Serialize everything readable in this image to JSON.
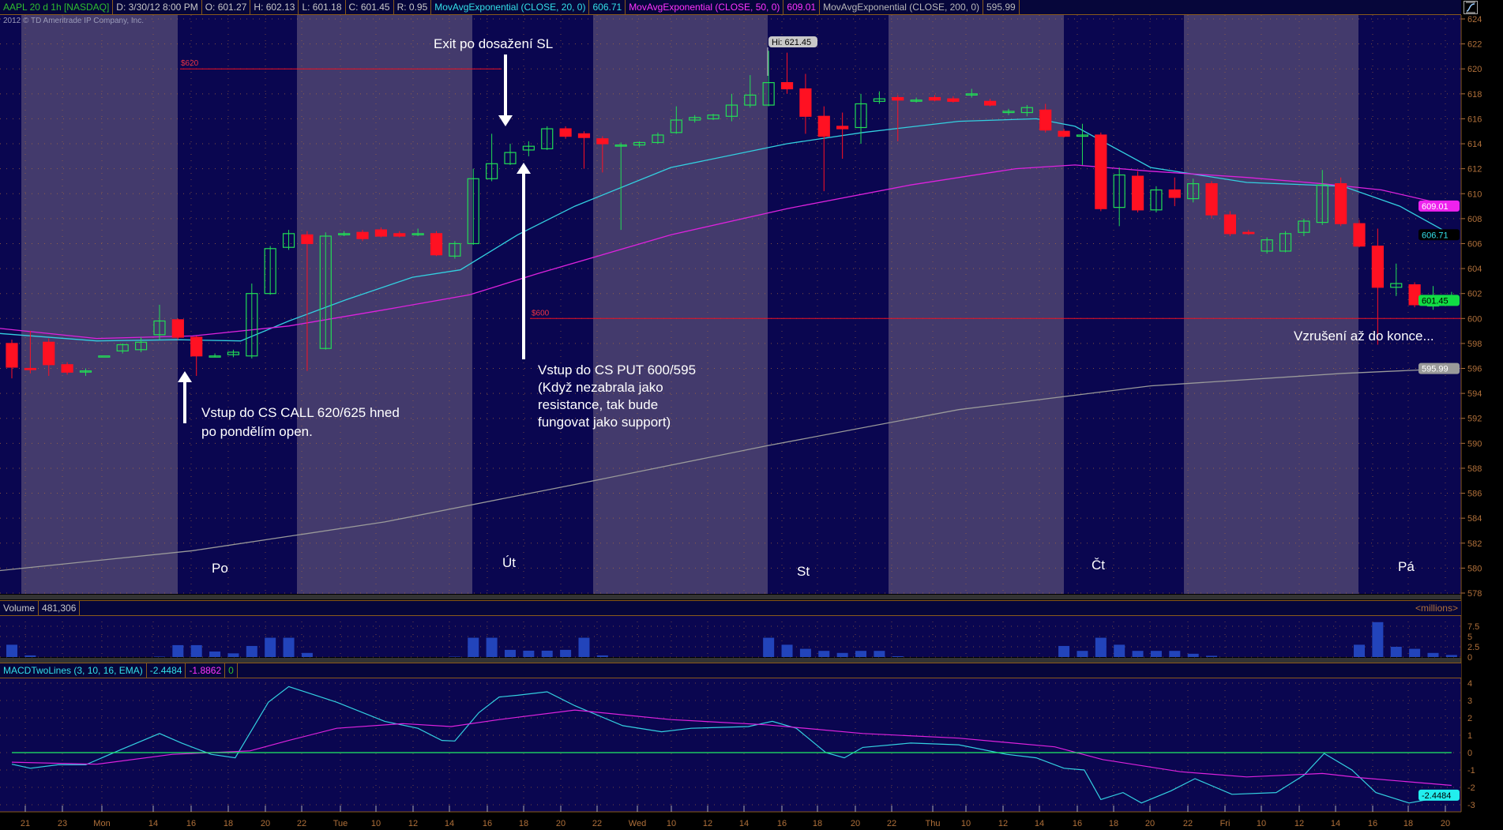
{
  "header": {
    "symbol": "AAPL 20 d 1h [NASDAQ]",
    "date": "D: 3/30/12 8:00 PM",
    "open": "O: 601.27",
    "high": "H: 602.13",
    "low": "L: 601.18",
    "close": "C: 601.45",
    "range": "R: 0.95",
    "ema20_label": "MovAvgExponential (CLOSE, 20, 0)",
    "ema20_value": "606.71",
    "ema50_label": "MovAvgExponential (CLOSE, 50, 0)",
    "ema50_value": "609.01",
    "ema200_label": "MovAvgExponential (CLOSE, 200, 0)",
    "ema200_value": "595.99",
    "copyright": "2012 © TD Ameritrade IP Company, Inc.",
    "style_icon": "chart-style-icon"
  },
  "volume_panel": {
    "label": "Volume",
    "value": "481,306",
    "unit": "<millions>"
  },
  "macd_panel": {
    "label": "MACDTwoLines (3, 10, 16, EMA)",
    "value": "-2.4484",
    "avg": "-1.8862",
    "diff": "0"
  },
  "annotations": {
    "exit": "Exit  po dosažení SL",
    "call_entry": [
      "Vstup do CS CALL 620/625 hned",
      "po pondělím open."
    ],
    "put_entry": [
      "Vstup do CS PUT 600/595",
      "(Když nezabrala jako",
      "resistance, tak bude",
      "fungovat jako support)"
    ],
    "excitement": "Vzrušení až do konce...",
    "days": [
      "Po",
      "Út",
      "St",
      "Čt",
      "Pá"
    ],
    "level_620": "$620",
    "level_600": "$600",
    "hi_label": "Hi: 621.45"
  },
  "colors": {
    "up": "#22dd55",
    "down": "#ff1122",
    "ema20": "#33d0e0",
    "ema50": "#dd22dd",
    "ema200": "#9a9a9a",
    "volume": "#2244bb",
    "session_light": "#433a6c",
    "session_dark": "#0a0650",
    "axis": "#b0703a"
  },
  "chart_data": [
    {
      "type": "candlestick",
      "title": "AAPL 20 d 1h [NASDAQ]",
      "ylim": [
        578,
        624
      ],
      "yticks": [
        578,
        580,
        582,
        584,
        586,
        588,
        590,
        592,
        594,
        596,
        598,
        600,
        602,
        604,
        606,
        608,
        610,
        612,
        614,
        616,
        618,
        620,
        622,
        624
      ],
      "xticks": [
        "21",
        "23",
        "Mon",
        "14",
        "16",
        "18",
        "20",
        "22",
        "Tue",
        "10",
        "12",
        "14",
        "16",
        "18",
        "20",
        "22",
        "Wed",
        "10",
        "12",
        "14",
        "16",
        "18",
        "20",
        "22",
        "Thu",
        "10",
        "12",
        "14",
        "16",
        "18",
        "20",
        "22",
        "Fri",
        "10",
        "12",
        "14",
        "16",
        "18",
        "20"
      ],
      "candles_ohlc": [
        [
          598.0,
          598.3,
          595.2,
          596.1
        ],
        [
          596.0,
          599.0,
          595.6,
          595.9
        ],
        [
          598.1,
          598.4,
          595.4,
          596.3
        ],
        [
          596.3,
          596.5,
          595.5,
          595.7
        ],
        [
          595.8,
          596.0,
          595.4,
          595.8
        ],
        [
          597.0,
          597.0,
          597.0,
          597.0
        ],
        [
          597.4,
          598.0,
          597.2,
          597.9
        ],
        [
          597.5,
          598.5,
          597.3,
          598.1
        ],
        [
          598.7,
          601.1,
          598.3,
          599.8
        ],
        [
          599.9,
          600.0,
          598.3,
          598.5
        ],
        [
          598.5,
          598.6,
          595.4,
          597.0
        ],
        [
          597.0,
          597.2,
          596.9,
          597.0
        ],
        [
          597.1,
          597.5,
          596.9,
          597.3
        ],
        [
          597.0,
          602.8,
          596.8,
          602.0
        ],
        [
          602.0,
          605.8,
          601.9,
          605.6
        ],
        [
          605.7,
          607.1,
          605.5,
          606.8
        ],
        [
          606.7,
          607.0,
          595.8,
          606.0
        ],
        [
          597.6,
          606.9,
          597.5,
          606.6
        ],
        [
          606.8,
          607.0,
          606.6,
          606.8
        ],
        [
          606.9,
          607.1,
          606.2,
          606.4
        ],
        [
          607.1,
          607.3,
          606.5,
          606.6
        ],
        [
          606.8,
          607.0,
          606.5,
          606.6
        ],
        [
          606.8,
          607.2,
          606.6,
          606.8
        ],
        [
          606.8,
          607.0,
          605.0,
          605.1
        ],
        [
          605.0,
          606.2,
          604.8,
          606.0
        ],
        [
          606.0,
          612.0,
          605.9,
          611.2
        ],
        [
          611.2,
          614.8,
          611.0,
          612.4
        ],
        [
          612.4,
          614.0,
          612.3,
          613.3
        ],
        [
          613.5,
          614.2,
          613.0,
          613.8
        ],
        [
          613.6,
          615.4,
          613.5,
          615.2
        ],
        [
          615.2,
          615.4,
          614.4,
          614.6
        ],
        [
          614.8,
          615.0,
          612.0,
          614.5
        ],
        [
          614.4,
          614.6,
          611.7,
          614.0
        ],
        [
          613.9,
          614.1,
          607.1,
          613.9
        ],
        [
          613.9,
          614.2,
          613.7,
          614.1
        ],
        [
          614.1,
          614.9,
          614.0,
          614.7
        ],
        [
          614.9,
          617.0,
          614.8,
          615.9
        ],
        [
          615.9,
          616.3,
          615.7,
          616.1
        ],
        [
          616.0,
          616.4,
          615.9,
          616.3
        ],
        [
          616.2,
          618.0,
          615.8,
          617.1
        ],
        [
          617.1,
          619.5,
          616.9,
          617.9
        ],
        [
          617.1,
          621.45,
          617.0,
          618.9
        ],
        [
          618.9,
          621.3,
          618.0,
          618.4
        ],
        [
          618.4,
          619.6,
          614.8,
          616.2
        ],
        [
          616.2,
          617.0,
          610.2,
          614.6
        ],
        [
          615.4,
          616.5,
          612.8,
          615.2
        ],
        [
          615.3,
          618.0,
          614.0,
          617.2
        ],
        [
          617.4,
          618.2,
          617.2,
          617.6
        ],
        [
          617.7,
          617.9,
          614.2,
          617.5
        ],
        [
          617.5,
          617.7,
          617.3,
          617.5
        ],
        [
          617.7,
          617.9,
          617.4,
          617.5
        ],
        [
          617.6,
          617.8,
          617.3,
          617.4
        ],
        [
          617.9,
          618.4,
          617.7,
          618.0
        ],
        [
          617.4,
          617.6,
          617.0,
          617.1
        ],
        [
          616.5,
          616.8,
          616.3,
          616.6
        ],
        [
          616.5,
          617.1,
          616.2,
          616.9
        ],
        [
          616.7,
          617.2,
          614.9,
          615.1
        ],
        [
          615.0,
          615.2,
          614.5,
          614.6
        ],
        [
          614.6,
          615.6,
          612.3,
          614.7
        ],
        [
          614.7,
          614.9,
          608.6,
          608.8
        ],
        [
          608.9,
          612.1,
          607.4,
          611.5
        ],
        [
          611.4,
          611.8,
          608.5,
          608.7
        ],
        [
          608.7,
          610.6,
          608.5,
          610.3
        ],
        [
          610.3,
          611.3,
          609.0,
          609.7
        ],
        [
          609.6,
          611.2,
          609.3,
          610.8
        ],
        [
          610.8,
          611.0,
          608.0,
          608.3
        ],
        [
          608.3,
          608.6,
          606.6,
          606.8
        ],
        [
          606.9,
          607.1,
          606.7,
          606.8
        ],
        [
          605.4,
          606.5,
          605.2,
          606.3
        ],
        [
          605.4,
          607.0,
          605.3,
          606.8
        ],
        [
          606.9,
          608.0,
          606.6,
          607.8
        ],
        [
          607.7,
          611.9,
          607.5,
          610.7
        ],
        [
          610.8,
          611.3,
          607.4,
          607.6
        ],
        [
          607.6,
          607.9,
          605.7,
          605.8
        ],
        [
          605.8,
          607.2,
          597.9,
          602.5
        ],
        [
          602.5,
          604.4,
          601.8,
          602.8
        ],
        [
          602.7,
          602.9,
          600.9,
          601.1
        ],
        [
          601.0,
          602.6,
          600.7,
          601.2
        ],
        [
          601.27,
          602.13,
          601.18,
          601.45
        ]
      ],
      "series": [
        {
          "name": "MovAvgExponential (CLOSE, 20, 0)",
          "points": [
            [
              0,
              598.8
            ],
            [
              4.6,
              598.2
            ],
            [
              9,
              598.3
            ],
            [
              12.4,
              598.2
            ],
            [
              15,
              599.8
            ],
            [
              18.1,
              601.5
            ],
            [
              21.7,
              603.3
            ],
            [
              24.3,
              603.9
            ],
            [
              27.4,
              606.7
            ],
            [
              30.5,
              609
            ],
            [
              35.7,
              612.1
            ],
            [
              42,
              614
            ],
            [
              46.1,
              614.9
            ],
            [
              51.3,
              615.8
            ],
            [
              55.5,
              616
            ],
            [
              57.6,
              615.4
            ],
            [
              61.7,
              612.1
            ],
            [
              66.9,
              610.9
            ],
            [
              72.1,
              610.6
            ],
            [
              75.2,
              609
            ],
            [
              78,
              606.71
            ]
          ]
        },
        {
          "name": "MovAvgExponential (CLOSE, 50, 0)",
          "points": [
            [
              0,
              599.2
            ],
            [
              4.6,
              598.4
            ],
            [
              9.8,
              598.6
            ],
            [
              15,
              599.4
            ],
            [
              20.2,
              600.7
            ],
            [
              24.8,
              601.9
            ],
            [
              28.5,
              603.6
            ],
            [
              35.7,
              606.7
            ],
            [
              42,
              608.8
            ],
            [
              48.7,
              610.7
            ],
            [
              54.4,
              612
            ],
            [
              57.6,
              612.3
            ],
            [
              61.7,
              611.8
            ],
            [
              66.9,
              611.3
            ],
            [
              71,
              610.8
            ],
            [
              74.2,
              610.3
            ],
            [
              78,
              609.01
            ]
          ]
        },
        {
          "name": "MovAvgExponential (CLOSE, 200, 0)",
          "points": [
            [
              0,
              579.8
            ],
            [
              9.8,
              581.4
            ],
            [
              20.2,
              583.7
            ],
            [
              30.5,
              586.7
            ],
            [
              40.9,
              589.8
            ],
            [
              51.3,
              592.7
            ],
            [
              61.7,
              594.6
            ],
            [
              72.1,
              595.6
            ],
            [
              78,
              595.99
            ]
          ]
        }
      ],
      "levels": [
        {
          "label": "$620",
          "value": 620
        },
        {
          "label": "$600",
          "value": 600
        }
      ]
    },
    {
      "type": "bar",
      "title": "Volume",
      "ylabel": "<millions>",
      "ylim": [
        0,
        8.5
      ],
      "yticks": [
        "0",
        "2.5",
        "5",
        "7.5"
      ],
      "values": [
        3.0,
        0.4,
        0,
        0,
        0,
        0,
        0,
        0,
        0.1,
        2.9,
        2.9,
        1.35,
        0.9,
        2.7,
        4.7,
        4.7,
        1.0,
        0,
        0,
        0,
        0,
        0,
        0,
        0,
        0.1,
        4.7,
        4.7,
        1.75,
        1.55,
        1.55,
        1.75,
        4.7,
        0.4,
        0,
        0,
        0,
        0,
        0,
        0,
        0,
        0,
        4.7,
        3.0,
        2.0,
        1.5,
        1.0,
        1.5,
        1.5,
        0.2,
        0,
        0,
        0,
        0,
        0,
        0,
        0,
        0,
        2.7,
        1.5,
        4.7,
        3.0,
        1.5,
        1.5,
        1.5,
        0.8,
        0.3,
        0,
        0,
        0,
        0,
        0,
        0,
        0,
        3.0,
        8.5,
        2.5,
        2.0,
        1.0,
        0.5
      ]
    },
    {
      "type": "line",
      "title": "MACDTwoLines (3, 10, 16, EMA)",
      "ylim": [
        -3.4,
        4.5
      ],
      "yticks": [
        "-3",
        "-2",
        "-1",
        "0",
        "1",
        "2",
        "3",
        "4"
      ],
      "series": [
        {
          "name": "Value",
          "points": [
            [
              0,
              -0.67
            ],
            [
              1,
              -0.9
            ],
            [
              2.5,
              -0.7
            ],
            [
              4,
              -0.7
            ],
            [
              5.9,
              0.17
            ],
            [
              8,
              1.1
            ],
            [
              9.2,
              0.55
            ],
            [
              10.8,
              -0.1
            ],
            [
              12.1,
              -0.3
            ],
            [
              13.9,
              2.9
            ],
            [
              15,
              3.8
            ],
            [
              17.6,
              2.9
            ],
            [
              20.2,
              1.8
            ],
            [
              22,
              1.4
            ],
            [
              23.3,
              0.7
            ],
            [
              24,
              0.67
            ],
            [
              25.3,
              2.3
            ],
            [
              26.4,
              3.2
            ],
            [
              27.4,
              3.3
            ],
            [
              29,
              3.5
            ],
            [
              30.5,
              2.7
            ],
            [
              33.1,
              1.55
            ],
            [
              35.2,
              1.2
            ],
            [
              36.8,
              1.4
            ],
            [
              39.9,
              1.5
            ],
            [
              41.2,
              1.8
            ],
            [
              42.5,
              1.4
            ],
            [
              44.1,
              0
            ],
            [
              45.1,
              -0.3
            ],
            [
              46.1,
              0.3
            ],
            [
              48.7,
              0.55
            ],
            [
              51.3,
              0.45
            ],
            [
              53.9,
              -0.1
            ],
            [
              55.5,
              -0.3
            ],
            [
              57,
              -0.9
            ],
            [
              58.1,
              -1
            ],
            [
              59,
              -2.7
            ],
            [
              60.2,
              -2.3
            ],
            [
              61.2,
              -2.9
            ],
            [
              62.8,
              -2.2
            ],
            [
              64.1,
              -1.5
            ],
            [
              66.1,
              -2.4
            ],
            [
              68.5,
              -2.3
            ],
            [
              70,
              -1.3
            ],
            [
              71.1,
              -0.05
            ],
            [
              72.6,
              -1
            ],
            [
              73.9,
              -2.3
            ],
            [
              75.7,
              -2.9
            ],
            [
              78,
              -2.4484
            ]
          ]
        },
        {
          "name": "Avg",
          "points": [
            [
              0,
              -0.55
            ],
            [
              4.6,
              -0.67
            ],
            [
              8.7,
              -0.1
            ],
            [
              12.9,
              0.1
            ],
            [
              15,
              0.7
            ],
            [
              17.6,
              1.4
            ],
            [
              21.2,
              1.67
            ],
            [
              23.8,
              1.5
            ],
            [
              26.4,
              1.9
            ],
            [
              30.5,
              2.45
            ],
            [
              35.7,
              1.9
            ],
            [
              40.9,
              1.6
            ],
            [
              46.1,
              1.1
            ],
            [
              51.3,
              0.83
            ],
            [
              56.5,
              0.33
            ],
            [
              59.1,
              -0.4
            ],
            [
              63.3,
              -1.1
            ],
            [
              66.9,
              -1.4
            ],
            [
              71,
              -1.2
            ],
            [
              73.1,
              -1.45
            ],
            [
              78,
              -1.8862
            ]
          ]
        },
        {
          "name": "Diff",
          "points": [
            [
              0,
              0
            ],
            [
              78,
              0
            ]
          ]
        }
      ]
    }
  ]
}
